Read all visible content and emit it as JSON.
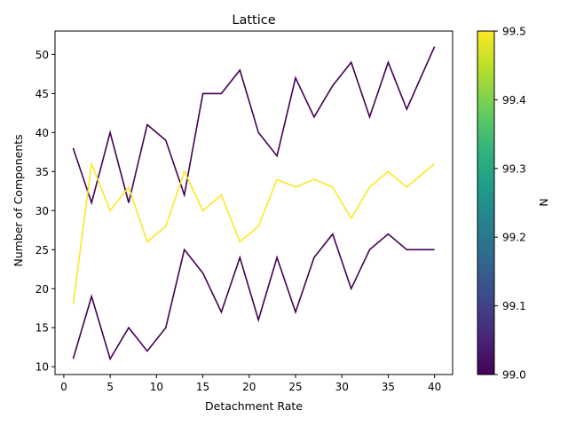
{
  "chart_data": {
    "type": "line",
    "title": "Lattice",
    "xlabel": "Detachment Rate",
    "ylabel": "Number of Components",
    "xlim": [
      -0.95,
      41.95
    ],
    "ylim": [
      9.0,
      53.0
    ],
    "xticks": [
      0,
      5,
      10,
      15,
      20,
      25,
      30,
      35,
      40
    ],
    "yticks": [
      10,
      15,
      20,
      25,
      30,
      35,
      40,
      45,
      50
    ],
    "x": [
      1,
      3,
      5,
      7,
      9,
      11,
      13,
      15,
      17,
      19,
      21,
      23,
      25,
      27,
      29,
      31,
      33,
      35,
      37,
      40
    ],
    "grid": false,
    "series": [
      {
        "color": "#440154",
        "values": [
          38,
          31,
          40,
          31,
          41,
          39,
          32,
          45,
          45,
          48,
          40,
          37,
          47,
          42,
          46,
          49,
          42,
          49,
          43,
          51
        ]
      },
      {
        "color": "#fde725",
        "values": [
          18,
          36,
          30,
          33,
          26,
          28,
          35,
          30,
          32,
          26,
          28,
          34,
          33,
          34,
          33,
          29,
          33,
          35,
          33,
          36
        ]
      },
      {
        "color": "#440154",
        "values": [
          11,
          19,
          11,
          15,
          12,
          15,
          25,
          22,
          17,
          24,
          16,
          24,
          17,
          24,
          27,
          20,
          25,
          27,
          25,
          25
        ]
      }
    ],
    "colorbar": {
      "label": "N",
      "range": [
        99.0,
        99.5
      ],
      "ticks": [
        "99.0",
        "99.1",
        "99.2",
        "99.3",
        "99.4",
        "99.5"
      ],
      "colormap": "viridis",
      "stops": [
        "#440154",
        "#482878",
        "#3e4989",
        "#31688e",
        "#26828e",
        "#1f9e89",
        "#35b779",
        "#6ece58",
        "#b5de2b",
        "#fde725"
      ]
    }
  }
}
